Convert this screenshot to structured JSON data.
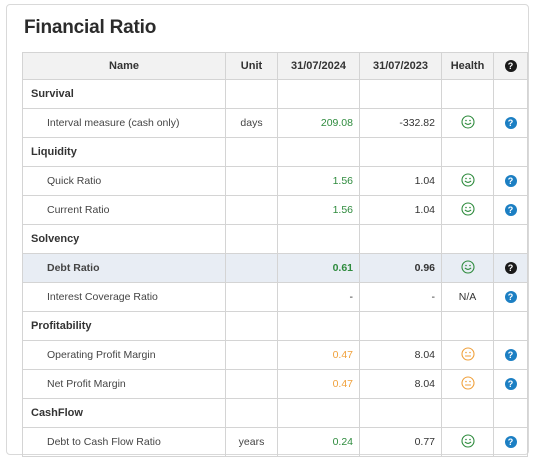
{
  "title": "Financial Ratio",
  "columns": {
    "name": "Name",
    "unit": "Unit",
    "col1": "31/07/2024",
    "col2": "31/07/2023",
    "health": "Health",
    "help": "?"
  },
  "colors": {
    "good": "#2e8b3d",
    "warning": "#f0a13c",
    "help": "#1c7fc3",
    "highlight": "#e8edf4"
  },
  "rows": [
    {
      "type": "section",
      "name": "Survival"
    },
    {
      "type": "item",
      "name": "Interval measure (cash only)",
      "unit": "days",
      "v1": "209.08",
      "v1_color": "green",
      "v2": "-332.82",
      "health": "good",
      "health_icon": "smiley-icon"
    },
    {
      "type": "section",
      "name": "Liquidity"
    },
    {
      "type": "item",
      "name": "Quick Ratio",
      "unit": "",
      "v1": "1.56",
      "v1_color": "green",
      "v2": "1.04",
      "health": "good",
      "health_icon": "smiley-icon"
    },
    {
      "type": "item",
      "name": "Current Ratio",
      "unit": "",
      "v1": "1.56",
      "v1_color": "green",
      "v2": "1.04",
      "health": "good",
      "health_icon": "smiley-icon"
    },
    {
      "type": "section",
      "name": "Solvency"
    },
    {
      "type": "item",
      "name": "Debt Ratio",
      "unit": "",
      "v1": "0.61",
      "v1_color": "green",
      "v2": "0.96",
      "health": "good",
      "health_icon": "smiley-icon",
      "highlight": true
    },
    {
      "type": "item",
      "name": "Interest Coverage Ratio",
      "unit": "",
      "v1": "-",
      "v1_color": "dark",
      "v2": "-",
      "health_text": "N/A"
    },
    {
      "type": "section",
      "name": "Profitability"
    },
    {
      "type": "item",
      "name": "Operating Profit Margin",
      "unit": "",
      "v1": "0.47",
      "v1_color": "orange",
      "v2": "8.04",
      "health": "warning",
      "health_icon": "neutral-face-icon"
    },
    {
      "type": "item",
      "name": "Net Profit Margin",
      "unit": "",
      "v1": "0.47",
      "v1_color": "orange",
      "v2": "8.04",
      "health": "warning",
      "health_icon": "neutral-face-icon"
    },
    {
      "type": "section",
      "name": "CashFlow"
    },
    {
      "type": "item",
      "name": "Debt to Cash Flow Ratio",
      "unit": "years",
      "v1": "0.24",
      "v1_color": "green",
      "v2": "0.77",
      "health": "good",
      "health_icon": "smiley-icon"
    }
  ]
}
